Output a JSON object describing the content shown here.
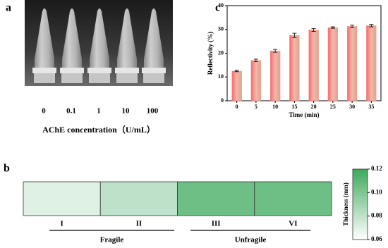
{
  "panel_a": {
    "label": "a",
    "concentrations": [
      "0",
      "0.1",
      "1",
      "10",
      "100"
    ],
    "xlabel": "AChE concentration（U/mL）"
  },
  "chart_data": [
    {
      "type": "bar",
      "label": "c",
      "xlabel": "Time (min)",
      "ylabel": "Reflectivity (%)",
      "categories": [
        "0",
        "5",
        "10",
        "15",
        "20",
        "25",
        "30",
        "35"
      ],
      "values": [
        12.5,
        17,
        21,
        27.5,
        29.8,
        30.8,
        31.3,
        31.6
      ],
      "errors": [
        0.3,
        0.5,
        0.6,
        0.9,
        0.6,
        0.3,
        0.5,
        0.5
      ],
      "color": "#f08c8c",
      "ylim": [
        0,
        40
      ],
      "yticks": [
        0,
        10,
        20,
        30,
        40
      ]
    },
    {
      "type": "heatmap",
      "label": "b",
      "categories": [
        "I",
        "II",
        "III",
        "VI"
      ],
      "values": [
        0.07,
        0.08,
        0.105,
        0.105
      ],
      "groups": [
        "Fragile",
        "Unfragile"
      ],
      "colors": [
        "#ffffff",
        "#3da95c"
      ],
      "zlim": [
        0.06,
        0.12
      ],
      "colorbar_label": "Thickness (mm)",
      "zticks": [
        0.06,
        0.08,
        {
          "value": 0.1,
          "label": "0.10"
        },
        0.12
      ]
    }
  ]
}
